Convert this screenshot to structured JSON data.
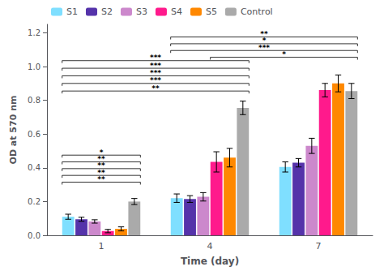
{
  "chart_data": {
    "type": "bar",
    "xlabel": "Time (day)",
    "ylabel": "OD at 570 nm",
    "categories": [
      "1",
      "4",
      "7"
    ],
    "series": [
      {
        "name": "S1",
        "color": "#7fdfff",
        "values": [
          0.11,
          0.22,
          0.405
        ],
        "errors": [
          0.015,
          0.025,
          0.03
        ]
      },
      {
        "name": "S2",
        "color": "#5533aa",
        "values": [
          0.095,
          0.215,
          0.43
        ],
        "errors": [
          0.012,
          0.02,
          0.025
        ]
      },
      {
        "name": "S3",
        "color": "#cc88cc",
        "values": [
          0.082,
          0.228,
          0.53
        ],
        "errors": [
          0.01,
          0.025,
          0.045
        ]
      },
      {
        "name": "S4",
        "color": "#ff1a8c",
        "values": [
          0.025,
          0.435,
          0.86
        ],
        "errors": [
          0.01,
          0.06,
          0.04
        ]
      },
      {
        "name": "S5",
        "color": "#ff8800",
        "values": [
          0.038,
          0.46,
          0.9
        ],
        "errors": [
          0.012,
          0.055,
          0.05
        ]
      },
      {
        "name": "Control",
        "color": "#aaaaaa",
        "values": [
          0.2,
          0.755,
          0.855
        ],
        "errors": [
          0.018,
          0.04,
          0.045
        ]
      }
    ],
    "ylim": [
      0,
      1.25
    ],
    "yticks": [
      {
        "value": 0.0,
        "label": "0.0"
      },
      0.2,
      0.4,
      0.6,
      0.8,
      {
        "value": 1.0,
        "label": "1.0"
      },
      1.2
    ],
    "grid": false,
    "legend": "upper left",
    "annotations": [
      {
        "text": "*",
        "y": 0.475,
        "from_category": "1",
        "from_series": "S1",
        "to_category": "1",
        "to_series": "Control"
      },
      {
        "text": "**",
        "y": 0.435,
        "from_category": "1",
        "from_series": "S1",
        "to_category": "1",
        "to_series": "Control"
      },
      {
        "text": "**",
        "y": 0.395,
        "from_category": "1",
        "from_series": "S1",
        "to_category": "1",
        "to_series": "Control"
      },
      {
        "text": "**",
        "y": 0.355,
        "from_category": "1",
        "from_series": "S1",
        "to_category": "1",
        "to_series": "Control"
      },
      {
        "text": "**",
        "y": 0.315,
        "from_category": "1",
        "from_series": "S1",
        "to_category": "1",
        "to_series": "Control"
      },
      {
        "text": "***",
        "y": 1.035,
        "from_category": "1",
        "from_series": "S1",
        "to_category": "4",
        "to_series": "Control"
      },
      {
        "text": "***",
        "y": 0.99,
        "from_category": "1",
        "from_series": "S1",
        "to_category": "4",
        "to_series": "Control"
      },
      {
        "text": "***",
        "y": 0.945,
        "from_category": "1",
        "from_series": "S1",
        "to_category": "4",
        "to_series": "Control"
      },
      {
        "text": "***",
        "y": 0.9,
        "from_category": "1",
        "from_series": "S1",
        "to_category": "4",
        "to_series": "Control"
      },
      {
        "text": "**",
        "y": 0.855,
        "from_category": "1",
        "from_series": "S1",
        "to_category": "4",
        "to_series": "Control"
      },
      {
        "text": "**",
        "y": 1.175,
        "from_category": "4",
        "from_series": "S1",
        "to_category": "7",
        "to_series": "Control"
      },
      {
        "text": "*",
        "y": 1.135,
        "from_category": "4",
        "from_series": "S1",
        "to_category": "7",
        "to_series": "Control"
      },
      {
        "text": "***",
        "y": 1.095,
        "from_category": "4",
        "from_series": "S1",
        "to_category": "7",
        "to_series": "Control"
      },
      {
        "text": "*",
        "y": 1.055,
        "from_category": "4",
        "from_series": "S4",
        "to_category": "7",
        "to_series": "Control"
      }
    ]
  }
}
